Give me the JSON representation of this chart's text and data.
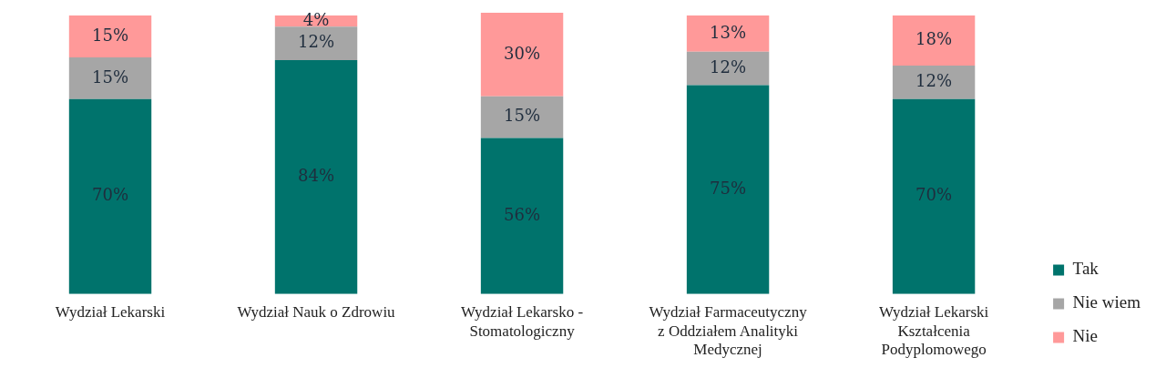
{
  "chart_data": {
    "type": "bar",
    "stacked": true,
    "legend": "right",
    "categories": [
      "Wydział Lekarski",
      "Wydział Nauk o Zdrowiu",
      "Wydział Lekarsko - Stomatologiczny",
      "Wydział Farmaceutyczny z Oddziałem Analityki Medycznej",
      "Wydział Lekarski Kształcenia Podyplomowego"
    ],
    "series": [
      {
        "name": "Tak",
        "color": "#00736c",
        "values": [
          70,
          84,
          56,
          75,
          70
        ],
        "value_labels": [
          "70%",
          "84%",
          "56%",
          "75%",
          "70%"
        ]
      },
      {
        "name": "Nie wiem",
        "color": "#a6a6a6",
        "values": [
          15,
          12,
          15,
          12,
          12
        ],
        "value_labels": [
          "15%",
          "12%",
          "15%",
          "12%",
          "12%"
        ]
      },
      {
        "name": "Nie",
        "color": "#ff9999",
        "values": [
          15,
          4,
          30,
          13,
          18
        ],
        "value_labels": [
          "15%",
          "4%",
          "30%",
          "13%",
          "18%"
        ]
      }
    ]
  }
}
